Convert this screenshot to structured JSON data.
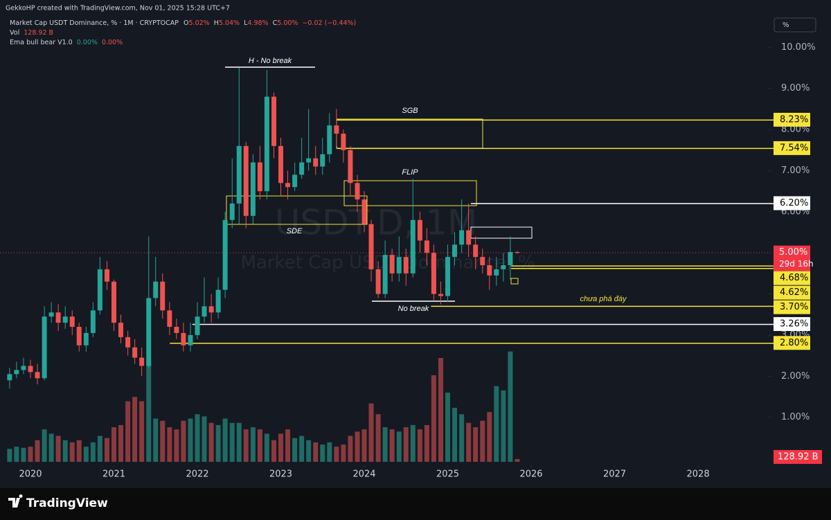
{
  "header": {
    "credit": "GekkoHP created with TradingView.com, Nov 01, 2025 15:28 UTC+7",
    "symbol": "Market Cap USDT Dominance, % · 1M · CRYPTOCAP",
    "ohlc": [
      {
        "key": "O",
        "value": "5.02%"
      },
      {
        "key": "H",
        "value": "5.04%"
      },
      {
        "key": "L",
        "value": "4.98%"
      },
      {
        "key": "C",
        "value": "5.00%"
      }
    ],
    "change": "−0.02 (−0.44%)",
    "vol_key": "Vol",
    "indicator": "Ema bull bear V1.0",
    "indicator_values": [
      "0.00%",
      "0.00%"
    ],
    "scale_button": "%",
    "brand": "TradingView"
  },
  "chart_data": {
    "type": "candlestick",
    "title": "USDT.D, 1M",
    "subtitle": "Market Cap USDT Dominance, %",
    "x": [
      2019.75,
      2019.833,
      2019.917,
      2020,
      2020.083,
      2020.167,
      2020.25,
      2020.333,
      2020.417,
      2020.5,
      2020.583,
      2020.667,
      2020.75,
      2020.833,
      2020.917,
      2021,
      2021.083,
      2021.167,
      2021.25,
      2021.333,
      2021.417,
      2021.5,
      2021.583,
      2021.667,
      2021.75,
      2021.833,
      2021.917,
      2022,
      2022.083,
      2022.167,
      2022.25,
      2022.333,
      2022.417,
      2022.5,
      2022.583,
      2022.667,
      2022.75,
      2022.833,
      2022.917,
      2023,
      2023.083,
      2023.167,
      2023.25,
      2023.333,
      2023.417,
      2023.5,
      2023.583,
      2023.667,
      2023.75,
      2023.833,
      2023.917,
      2024,
      2024.083,
      2024.167,
      2024.25,
      2024.333,
      2024.417,
      2024.5,
      2024.583,
      2024.667,
      2024.75,
      2024.833,
      2024.917,
      2025,
      2025.083,
      2025.167,
      2025.25,
      2025.333,
      2025.417,
      2025.5,
      2025.583,
      2025.667,
      2025.75,
      2025.833
    ],
    "open": [
      1.9,
      2.05,
      2.15,
      2.25,
      2.1,
      1.95,
      3.45,
      3.55,
      3.3,
      3.45,
      3.2,
      2.75,
      3.05,
      3.6,
      4.6,
      4.3,
      3.3,
      2.95,
      2.7,
      2.45,
      2.25,
      3.9,
      4.3,
      3.6,
      3.2,
      3.05,
      2.75,
      3.0,
      3.45,
      3.7,
      3.55,
      4.1,
      5.8,
      6.2,
      7.6,
      5.9,
      7.2,
      6.5,
      8.8,
      7.6,
      6.7,
      6.6,
      6.9,
      7.2,
      7.3,
      7.1,
      7.4,
      8.1,
      7.9,
      7.5,
      6.7,
      6.3,
      5.7,
      4.6,
      4.0,
      4.95,
      4.5,
      4.9,
      4.5,
      5.8,
      5.3,
      5.0,
      4.0,
      3.95,
      4.9,
      5.2,
      5.55,
      5.2,
      4.9,
      4.7,
      4.45,
      4.6,
      4.7,
      5.02
    ],
    "high": [
      2.2,
      2.35,
      2.45,
      2.4,
      2.3,
      3.7,
      3.8,
      3.75,
      3.7,
      3.6,
      3.3,
      3.2,
      3.8,
      4.9,
      4.8,
      4.35,
      3.5,
      3.1,
      2.9,
      2.7,
      5.4,
      4.9,
      4.5,
      3.8,
      3.4,
      3.3,
      3.3,
      3.8,
      4.4,
      4.0,
      4.4,
      6.0,
      7.3,
      9.5,
      7.7,
      7.4,
      7.6,
      9.45,
      8.9,
      7.8,
      7.0,
      7.2,
      7.8,
      8.5,
      7.6,
      7.8,
      8.4,
      8.5,
      8.0,
      7.6,
      6.9,
      6.5,
      5.8,
      4.8,
      5.3,
      5.1,
      5.4,
      5.1,
      6.8,
      6.0,
      5.6,
      5.2,
      4.3,
      5.2,
      5.5,
      6.3,
      6.2,
      5.4,
      5.1,
      4.9,
      4.9,
      5.0,
      5.4,
      5.04
    ],
    "low": [
      1.7,
      1.95,
      2.05,
      1.95,
      1.8,
      1.9,
      3.3,
      3.1,
      3.15,
      3.0,
      2.6,
      2.6,
      2.95,
      3.5,
      4.1,
      3.1,
      2.8,
      2.5,
      2.3,
      2.0,
      2.2,
      3.7,
      3.4,
      3.0,
      2.9,
      2.6,
      2.6,
      2.9,
      3.3,
      3.3,
      3.4,
      3.9,
      5.6,
      5.7,
      5.6,
      5.7,
      6.3,
      6.3,
      7.3,
      6.4,
      6.3,
      6.5,
      6.8,
      7.0,
      6.9,
      6.9,
      7.2,
      7.6,
      7.2,
      6.4,
      6.0,
      5.5,
      4.3,
      3.9,
      3.9,
      4.3,
      4.3,
      4.2,
      4.4,
      5.0,
      4.7,
      3.85,
      3.75,
      3.8,
      4.7,
      5.0,
      4.9,
      4.6,
      4.5,
      4.1,
      4.2,
      4.3,
      4.35,
      4.98
    ],
    "close": [
      2.05,
      2.15,
      2.25,
      2.1,
      1.95,
      3.45,
      3.55,
      3.3,
      3.45,
      3.2,
      2.75,
      3.05,
      3.6,
      4.6,
      4.3,
      3.3,
      2.95,
      2.7,
      2.45,
      2.25,
      3.9,
      4.3,
      3.6,
      3.2,
      3.05,
      2.75,
      3.0,
      3.45,
      3.7,
      3.55,
      4.1,
      5.8,
      6.2,
      7.6,
      5.9,
      7.2,
      6.5,
      8.8,
      7.6,
      6.7,
      6.6,
      6.9,
      7.2,
      7.3,
      7.1,
      7.4,
      8.1,
      7.9,
      7.5,
      6.7,
      6.3,
      5.7,
      4.6,
      4.0,
      4.95,
      4.5,
      4.9,
      4.5,
      5.8,
      5.3,
      5.0,
      4.0,
      3.95,
      4.9,
      5.2,
      5.55,
      5.2,
      4.9,
      4.7,
      4.45,
      4.6,
      4.7,
      5.02,
      5.0
    ],
    "volume": [
      600,
      700,
      650,
      700,
      1000,
      1500,
      1300,
      1200,
      1000,
      900,
      1000,
      700,
      900,
      1200,
      1100,
      1600,
      1700,
      2800,
      3000,
      2800,
      4700,
      2000,
      1900,
      1600,
      1500,
      1900,
      2000,
      2200,
      2100,
      1800,
      1700,
      2000,
      1800,
      1800,
      1500,
      1600,
      1500,
      1300,
      1000,
      1300,
      1500,
      1100,
      1200,
      1000,
      900,
      800,
      900,
      700,
      800,
      1200,
      1400,
      1500,
      2700,
      2200,
      1600,
      1500,
      1400,
      1600,
      1700,
      1500,
      1700,
      4000,
      4800,
      3200,
      2500,
      2200,
      1800,
      1600,
      1900,
      2300,
      3500,
      3300,
      5100,
      128.92
    ],
    "up_color": "#26a69a",
    "down_color": "#ef5350",
    "volume_up_color": "#1f6b65",
    "volume_down_color": "#8a3a3e",
    "xlim": [
      2019.635,
      2028.846
    ],
    "xticks": [
      2020,
      2021,
      2022,
      2023,
      2024,
      2025,
      2026,
      2027,
      2028
    ],
    "ylim": [
      0,
      11
    ],
    "yticks": [
      {
        "value": 1,
        "label": "1.00%"
      },
      {
        "value": 2,
        "label": "2.00%"
      },
      {
        "value": 3,
        "label": "3.00%"
      },
      {
        "value": 4,
        "label": "4.00%"
      },
      {
        "value": 5,
        "label": "5.00%"
      },
      {
        "value": 6,
        "label": "6.00%"
      },
      {
        "value": 7,
        "label": "7.00%"
      },
      {
        "value": 8,
        "label": "8.00%"
      },
      {
        "value": 9,
        "label": "9.00%"
      },
      {
        "value": 10,
        "label": "10.00%"
      }
    ],
    "y2lim": [
      0,
      20000
    ],
    "grid": false,
    "last_price_label": "5.00%",
    "countdown": "29d 16h",
    "volume_label": "128.92 B",
    "price_color": "#f23645",
    "levels": [
      {
        "value": 8.23,
        "label": "8.23%",
        "color": "#f5e43a",
        "from": 2023.67
      },
      {
        "value": 7.54,
        "label": "7.54%",
        "color": "#f5e43a",
        "from": 2023.67
      },
      {
        "value": 6.2,
        "label": "6.20%",
        "color": "#ffffff",
        "from": 2025.278
      },
      {
        "value": 4.68,
        "label": "4.68%",
        "color": "#f5e43a",
        "from": 2025.76
      },
      {
        "value": 4.62,
        "label": "4.62%",
        "color": "#f5e43a",
        "from": 2025.76
      },
      {
        "value": 3.7,
        "label": "3.70%",
        "color": "#f5e43a",
        "from": 2024.8
      },
      {
        "value": 3.26,
        "label": "3.26%",
        "color": "#ffffff",
        "from": 2021.94
      },
      {
        "value": 2.8,
        "label": "2.80%",
        "color": "#f5e43a",
        "from": 2021.67
      }
    ],
    "annotations": {
      "h_no_break": "H - No break",
      "sgb": "SGB",
      "flip": "FLIP",
      "sde": "SDE",
      "no_break": "No break",
      "bottom_note": "chưa phá đáy"
    }
  }
}
